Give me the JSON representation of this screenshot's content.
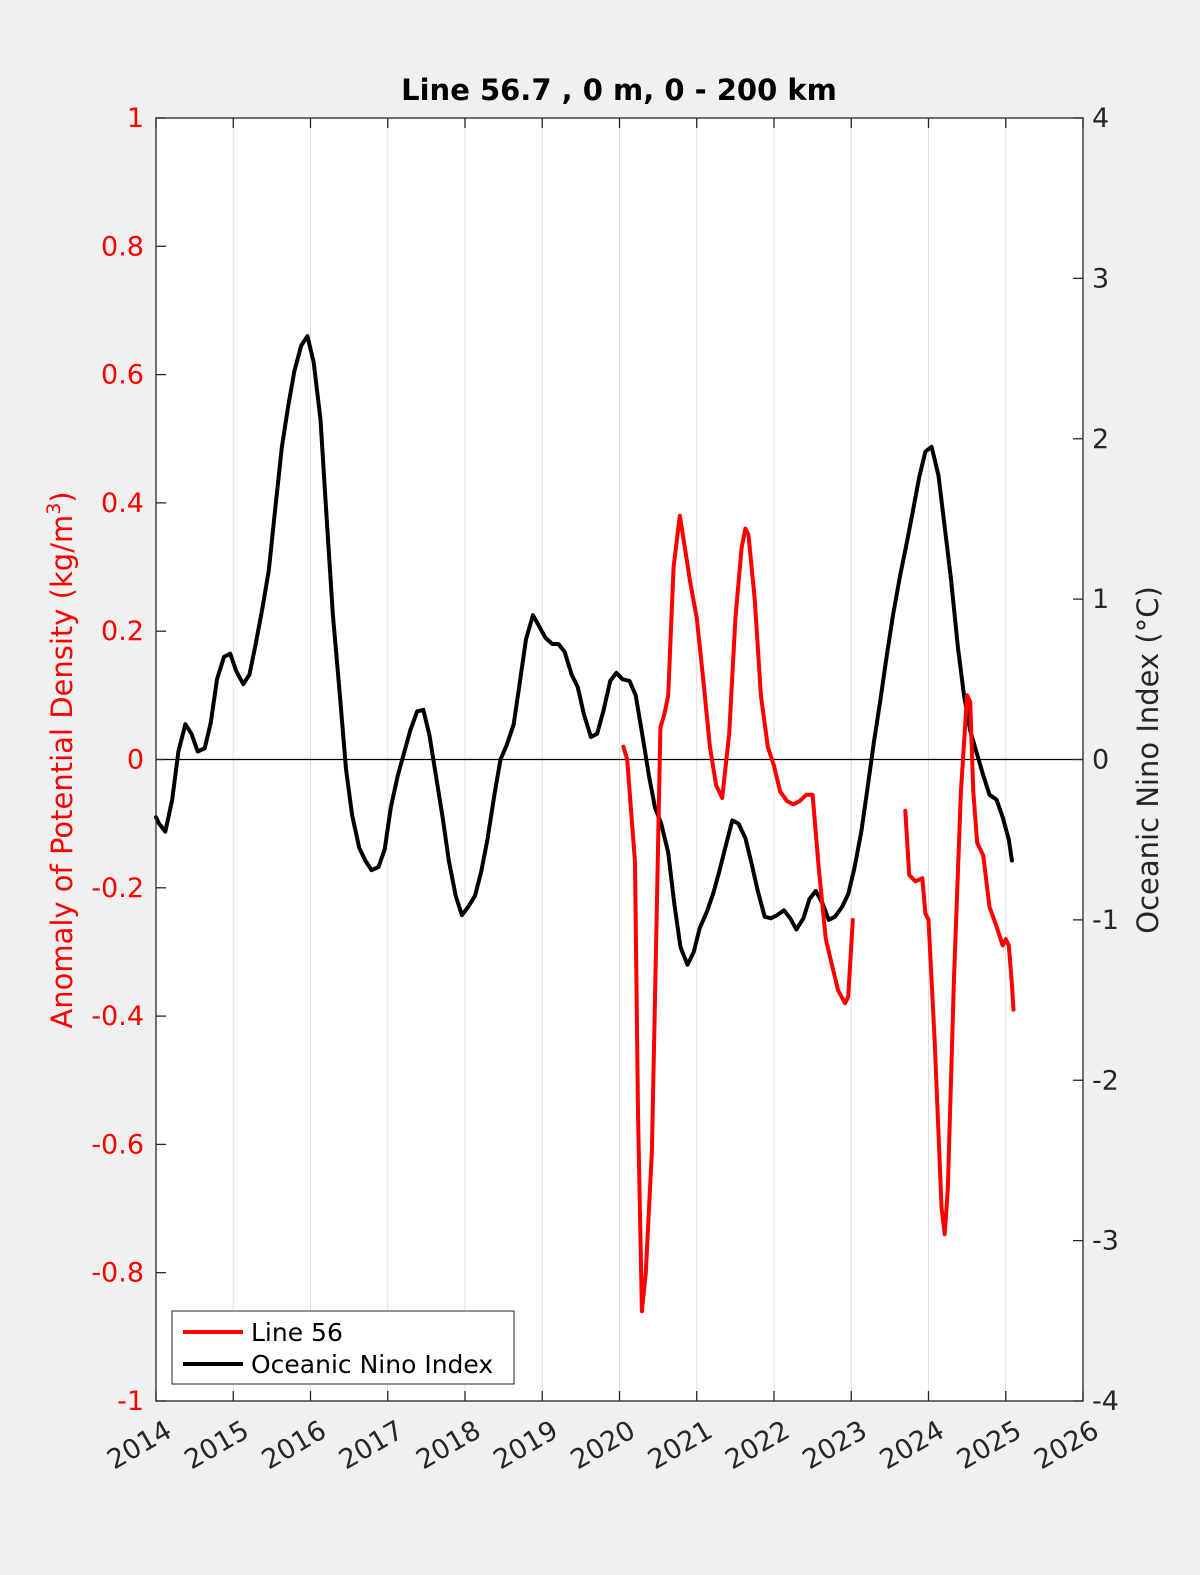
{
  "chart_data": {
    "type": "line",
    "title": "Line 56.7 , 0 m, 0 - 200 km",
    "ylabel_left": "Anomaly of Potential Density (kg/m",
    "ylabel_left_sup": "3",
    "ylabel_left_close": ")",
    "ylabel_right": "Oceanic Nino Index (°C)",
    "xlim": [
      2014,
      2026
    ],
    "ylim_left": [
      -1,
      1
    ],
    "ylim_right": [
      -4,
      4
    ],
    "xticks": [
      "2014",
      "2015",
      "2016",
      "2017",
      "2018",
      "2019",
      "2020",
      "2021",
      "2022",
      "2023",
      "2024",
      "2025",
      "2026"
    ],
    "yticks_left": [
      "1",
      "0.8",
      "0.6",
      "0.4",
      "0.2",
      "0",
      "-0.2",
      "-0.4",
      "-0.6",
      "-0.8",
      "-1"
    ],
    "yticks_right": [
      "4",
      "3",
      "2",
      "1",
      "0",
      "-1",
      "-2",
      "-3",
      "-4"
    ],
    "grid": "vertical",
    "legend_position": "bottom-left",
    "colors": {
      "line56": "#ff0000",
      "oni": "#000000",
      "axis_left": "#ff0000"
    },
    "series": [
      {
        "name": "Line 56",
        "axis": "left",
        "segments": [
          [
            [
              2020.05,
              0.02
            ],
            [
              2020.1,
              0.0
            ],
            [
              2020.15,
              -0.08
            ],
            [
              2020.2,
              -0.16
            ],
            [
              2020.24,
              -0.55
            ],
            [
              2020.29,
              -0.86
            ],
            [
              2020.34,
              -0.8
            ],
            [
              2020.42,
              -0.61
            ],
            [
              2020.48,
              -0.25
            ],
            [
              2020.53,
              0.05
            ],
            [
              2020.58,
              0.07
            ],
            [
              2020.63,
              0.1
            ],
            [
              2020.7,
              0.3
            ],
            [
              2020.78,
              0.38
            ],
            [
              2020.86,
              0.32
            ],
            [
              2020.91,
              0.28
            ],
            [
              2021.0,
              0.22
            ],
            [
              2021.08,
              0.13
            ],
            [
              2021.17,
              0.02
            ],
            [
              2021.25,
              -0.04
            ],
            [
              2021.33,
              -0.06
            ],
            [
              2021.42,
              0.04
            ],
            [
              2021.5,
              0.22
            ],
            [
              2021.58,
              0.33
            ],
            [
              2021.63,
              0.36
            ],
            [
              2021.67,
              0.35
            ],
            [
              2021.75,
              0.25
            ],
            [
              2021.83,
              0.1
            ],
            [
              2021.92,
              0.02
            ],
            [
              2022.0,
              -0.01
            ],
            [
              2022.08,
              -0.05
            ],
            [
              2022.17,
              -0.065
            ],
            [
              2022.25,
              -0.07
            ],
            [
              2022.33,
              -0.065
            ],
            [
              2022.42,
              -0.055
            ],
            [
              2022.5,
              -0.055
            ],
            [
              2022.58,
              -0.17
            ],
            [
              2022.67,
              -0.28
            ],
            [
              2022.75,
              -0.32
            ],
            [
              2022.83,
              -0.36
            ],
            [
              2022.92,
              -0.38
            ],
            [
              2022.96,
              -0.37
            ],
            [
              2023.02,
              -0.25
            ]
          ],
          [
            [
              2023.7,
              -0.08
            ],
            [
              2023.75,
              -0.18
            ],
            [
              2023.83,
              -0.19
            ],
            [
              2023.92,
              -0.185
            ],
            [
              2023.96,
              -0.24
            ],
            [
              2024.0,
              -0.25
            ],
            [
              2024.08,
              -0.44
            ],
            [
              2024.17,
              -0.7
            ],
            [
              2024.21,
              -0.74
            ],
            [
              2024.25,
              -0.67
            ],
            [
              2024.33,
              -0.34
            ],
            [
              2024.42,
              -0.05
            ],
            [
              2024.5,
              0.1
            ],
            [
              2024.54,
              0.09
            ],
            [
              2024.58,
              -0.05
            ],
            [
              2024.63,
              -0.13
            ],
            [
              2024.71,
              -0.15
            ],
            [
              2024.79,
              -0.23
            ],
            [
              2024.88,
              -0.26
            ],
            [
              2024.96,
              -0.29
            ],
            [
              2025.0,
              -0.28
            ],
            [
              2025.04,
              -0.29
            ],
            [
              2025.08,
              -0.35
            ],
            [
              2025.1,
              -0.39
            ]
          ]
        ]
      },
      {
        "name": "Oceanic Nino Index",
        "axis": "right",
        "segments": [
          [
            [
              2014.0,
              -0.36
            ],
            [
              2014.04,
              -0.4
            ],
            [
              2014.12,
              -0.45
            ],
            [
              2014.21,
              -0.25
            ],
            [
              2014.29,
              0.05
            ],
            [
              2014.38,
              0.22
            ],
            [
              2014.46,
              0.16
            ],
            [
              2014.54,
              0.05
            ],
            [
              2014.63,
              0.07
            ],
            [
              2014.71,
              0.23
            ],
            [
              2014.79,
              0.5
            ],
            [
              2014.88,
              0.64
            ],
            [
              2014.96,
              0.66
            ],
            [
              2015.04,
              0.55
            ],
            [
              2015.13,
              0.47
            ],
            [
              2015.21,
              0.53
            ],
            [
              2015.29,
              0.72
            ],
            [
              2015.38,
              0.95
            ],
            [
              2015.46,
              1.18
            ],
            [
              2015.54,
              1.55
            ],
            [
              2015.63,
              1.95
            ],
            [
              2015.71,
              2.2
            ],
            [
              2015.79,
              2.42
            ],
            [
              2015.88,
              2.58
            ],
            [
              2015.96,
              2.64
            ],
            [
              2016.04,
              2.48
            ],
            [
              2016.13,
              2.12
            ],
            [
              2016.21,
              1.5
            ],
            [
              2016.29,
              0.9
            ],
            [
              2016.38,
              0.4
            ],
            [
              2016.46,
              -0.06
            ],
            [
              2016.54,
              -0.35
            ],
            [
              2016.63,
              -0.55
            ],
            [
              2016.71,
              -0.63
            ],
            [
              2016.79,
              -0.69
            ],
            [
              2016.88,
              -0.67
            ],
            [
              2016.96,
              -0.56
            ],
            [
              2017.04,
              -0.3
            ],
            [
              2017.13,
              -0.1
            ],
            [
              2017.21,
              0.04
            ],
            [
              2017.29,
              0.18
            ],
            [
              2017.38,
              0.3
            ],
            [
              2017.46,
              0.31
            ],
            [
              2017.54,
              0.15
            ],
            [
              2017.63,
              -0.12
            ],
            [
              2017.71,
              -0.36
            ],
            [
              2017.79,
              -0.63
            ],
            [
              2017.88,
              -0.85
            ],
            [
              2017.96,
              -0.97
            ],
            [
              2018.04,
              -0.92
            ],
            [
              2018.13,
              -0.85
            ],
            [
              2018.21,
              -0.7
            ],
            [
              2018.29,
              -0.5
            ],
            [
              2018.38,
              -0.22
            ],
            [
              2018.46,
              0.0
            ],
            [
              2018.54,
              0.09
            ],
            [
              2018.63,
              0.22
            ],
            [
              2018.71,
              0.48
            ],
            [
              2018.79,
              0.75
            ],
            [
              2018.88,
              0.9
            ],
            [
              2018.96,
              0.83
            ],
            [
              2019.04,
              0.76
            ],
            [
              2019.13,
              0.72
            ],
            [
              2019.21,
              0.72
            ],
            [
              2019.29,
              0.67
            ],
            [
              2019.38,
              0.53
            ],
            [
              2019.46,
              0.45
            ],
            [
              2019.54,
              0.28
            ],
            [
              2019.63,
              0.14
            ],
            [
              2019.71,
              0.16
            ],
            [
              2019.79,
              0.3
            ],
            [
              2019.88,
              0.49
            ],
            [
              2019.96,
              0.54
            ],
            [
              2020.04,
              0.5
            ],
            [
              2020.13,
              0.49
            ],
            [
              2020.21,
              0.4
            ],
            [
              2020.29,
              0.17
            ],
            [
              2020.38,
              -0.1
            ],
            [
              2020.46,
              -0.3
            ],
            [
              2020.54,
              -0.4
            ],
            [
              2020.63,
              -0.58
            ],
            [
              2020.71,
              -0.9
            ],
            [
              2020.79,
              -1.17
            ],
            [
              2020.88,
              -1.28
            ],
            [
              2020.96,
              -1.2
            ],
            [
              2021.04,
              -1.05
            ],
            [
              2021.13,
              -0.95
            ],
            [
              2021.21,
              -0.84
            ],
            [
              2021.29,
              -0.7
            ],
            [
              2021.38,
              -0.53
            ],
            [
              2021.46,
              -0.38
            ],
            [
              2021.54,
              -0.4
            ],
            [
              2021.63,
              -0.49
            ],
            [
              2021.71,
              -0.65
            ],
            [
              2021.79,
              -0.82
            ],
            [
              2021.88,
              -0.98
            ],
            [
              2021.96,
              -0.99
            ],
            [
              2022.04,
              -0.97
            ],
            [
              2022.13,
              -0.94
            ],
            [
              2022.21,
              -0.99
            ],
            [
              2022.29,
              -1.06
            ],
            [
              2022.38,
              -0.99
            ],
            [
              2022.46,
              -0.87
            ],
            [
              2022.54,
              -0.82
            ],
            [
              2022.63,
              -0.9
            ],
            [
              2022.71,
              -1.0
            ],
            [
              2022.79,
              -0.98
            ],
            [
              2022.88,
              -0.92
            ],
            [
              2022.96,
              -0.84
            ],
            [
              2023.04,
              -0.68
            ],
            [
              2023.13,
              -0.45
            ],
            [
              2023.21,
              -0.18
            ],
            [
              2023.29,
              0.1
            ],
            [
              2023.38,
              0.38
            ],
            [
              2023.46,
              0.65
            ],
            [
              2023.54,
              0.9
            ],
            [
              2023.63,
              1.14
            ],
            [
              2023.71,
              1.33
            ],
            [
              2023.79,
              1.53
            ],
            [
              2023.88,
              1.76
            ],
            [
              2023.96,
              1.92
            ],
            [
              2024.04,
              1.95
            ],
            [
              2024.13,
              1.77
            ],
            [
              2024.21,
              1.45
            ],
            [
              2024.29,
              1.13
            ],
            [
              2024.38,
              0.7
            ],
            [
              2024.46,
              0.4
            ],
            [
              2024.54,
              0.18
            ],
            [
              2024.63,
              0.03
            ],
            [
              2024.71,
              -0.1
            ],
            [
              2024.79,
              -0.22
            ],
            [
              2024.88,
              -0.25
            ],
            [
              2024.96,
              -0.36
            ],
            [
              2025.04,
              -0.5
            ],
            [
              2025.08,
              -0.63
            ]
          ]
        ]
      }
    ]
  }
}
